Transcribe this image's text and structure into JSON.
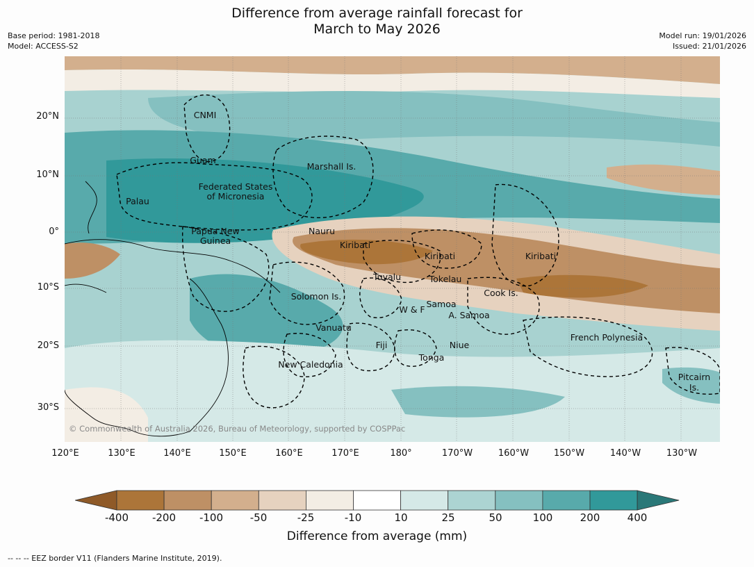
{
  "title_line1": "Difference from average rainfall forecast for",
  "title_line2": "March to May 2026",
  "base_period": "Base period: 1981-2018",
  "model": "Model: ACCESS-S2",
  "model_run": "Model run: 19/01/2026",
  "issued": "Issued: 21/01/2026",
  "copyright": "© Commonwealth of Australia 2026, Bureau of Meteorology, supported by COSPPac",
  "footnote": "-- -- -- EEZ border V11 (Flanders Marine Institute, 2019).",
  "lat_ticks": [
    "20°N",
    "10°N",
    "0°",
    "10°S",
    "20°S",
    "30°S"
  ],
  "lon_ticks": [
    "120°E",
    "130°E",
    "140°E",
    "150°E",
    "160°E",
    "170°E",
    "180°",
    "170°W",
    "160°W",
    "150°W",
    "140°W",
    "130°W"
  ],
  "colorbar": {
    "title": "Difference from average (mm)",
    "labels": [
      "-400",
      "-200",
      "-100",
      "-50",
      "-25",
      "-10",
      "10",
      "25",
      "50",
      "100",
      "200",
      "400"
    ],
    "colors": [
      "#8f5a28",
      "#ac7539",
      "#be9065",
      "#d3af8d",
      "#e6d2bf",
      "#f3ede4",
      "#ffffff",
      "#d5e9e7",
      "#acd4d2",
      "#85c0c0",
      "#58aaab",
      "#31999a",
      "#2a7878"
    ]
  },
  "regions": [
    "CNMI",
    "Guam",
    "Marshall Is.",
    "Palau",
    "Federated States",
    "of Micronesia",
    "Papua New",
    "Guinea",
    "Nauru",
    "Kiribati",
    "Kiribati",
    "Kiribati",
    "Tuvalu",
    "Tokelau",
    "Solomon Is.",
    "Cook Is.",
    "W & F",
    "Samoa",
    "A. Samoa",
    "Vanuatu",
    "Fiji",
    "Niue",
    "French Polynesia",
    "Tonga",
    "New Caledonia",
    "Pitcairn",
    "Is."
  ]
}
